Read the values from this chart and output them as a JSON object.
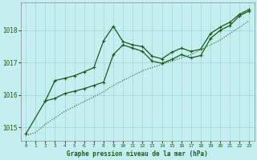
{
  "title": "Graphe pression niveau de la mer (hPa)",
  "bg_color": "#c5eef0",
  "grid_color": "#a0d8dc",
  "line_color": "#1a5c1a",
  "xlim": [
    -0.5,
    23.5
  ],
  "ylim": [
    1014.6,
    1018.85
  ],
  "yticks": [
    1015,
    1016,
    1017,
    1018
  ],
  "xticks": [
    0,
    1,
    2,
    3,
    4,
    5,
    6,
    7,
    8,
    9,
    10,
    11,
    12,
    13,
    14,
    15,
    16,
    17,
    18,
    19,
    20,
    21,
    22,
    23
  ],
  "line_dotted_x": [
    0,
    1,
    2,
    3,
    4,
    5,
    6,
    7,
    8,
    9,
    10,
    11,
    12,
    13,
    14,
    15,
    16,
    17,
    18,
    19,
    20,
    21,
    22,
    23
  ],
  "line_dotted_y": [
    1014.75,
    1014.85,
    1015.1,
    1015.3,
    1015.5,
    1015.65,
    1015.8,
    1015.95,
    1016.1,
    1016.3,
    1016.45,
    1016.6,
    1016.75,
    1016.85,
    1016.95,
    1017.05,
    1017.15,
    1017.25,
    1017.4,
    1017.55,
    1017.7,
    1017.9,
    1018.1,
    1018.3
  ],
  "line_jagged_x": [
    0,
    2,
    3,
    4,
    5,
    6,
    7,
    8,
    9,
    10,
    11,
    12,
    13,
    14,
    15,
    16,
    17,
    18,
    19,
    20,
    21,
    22,
    23
  ],
  "line_jagged_y": [
    1014.8,
    1015.82,
    1015.9,
    1016.05,
    1016.12,
    1016.2,
    1016.3,
    1016.4,
    1017.25,
    1017.55,
    1017.45,
    1017.35,
    1017.05,
    1016.98,
    1017.1,
    1017.25,
    1017.15,
    1017.22,
    1017.75,
    1018.0,
    1018.15,
    1018.45,
    1018.6
  ],
  "line_peak_x": [
    2,
    3,
    4,
    5,
    6,
    7,
    8,
    9,
    10,
    11,
    12,
    13,
    14,
    15,
    16,
    17,
    18,
    19,
    20,
    21,
    22,
    23
  ],
  "line_peak_y": [
    1015.82,
    1016.45,
    1016.52,
    1016.6,
    1016.72,
    1016.85,
    1017.68,
    1018.12,
    1017.65,
    1017.55,
    1017.5,
    1017.2,
    1017.12,
    1017.32,
    1017.45,
    1017.35,
    1017.42,
    1017.9,
    1018.1,
    1018.25,
    1018.5,
    1018.65
  ],
  "figsize": [
    3.2,
    2.0
  ],
  "dpi": 100
}
